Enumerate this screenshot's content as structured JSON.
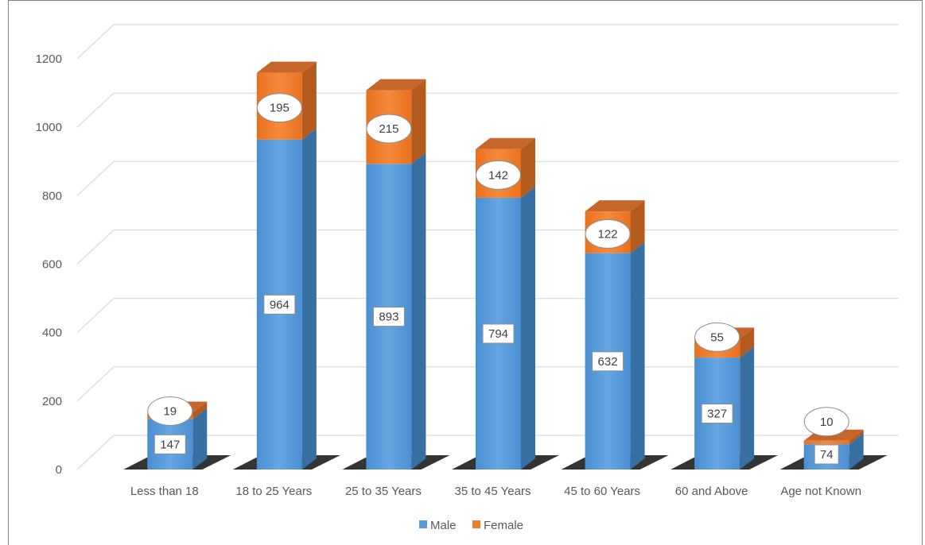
{
  "chart_data": {
    "type": "bar",
    "stacked": true,
    "style": "3d-column",
    "categories": [
      "Less than 18",
      "18 to 25 Years",
      "25 to 35 Years",
      "35 to 45 Years",
      "45 to 60 Years",
      "60 and Above",
      "Age not Known"
    ],
    "series": [
      {
        "name": "Male",
        "values": [
          147,
          964,
          893,
          794,
          632,
          327,
          74
        ],
        "color": "#5b9bd5"
      },
      {
        "name": "Female",
        "values": [
          19,
          195,
          215,
          142,
          122,
          55,
          10
        ],
        "color": "#ed7d31"
      }
    ],
    "ylim": [
      0,
      1200
    ],
    "yticks": [
      0,
      200,
      400,
      600,
      800,
      1000,
      1200
    ],
    "grid": true,
    "legend_position": "bottom",
    "data_labels": true
  }
}
